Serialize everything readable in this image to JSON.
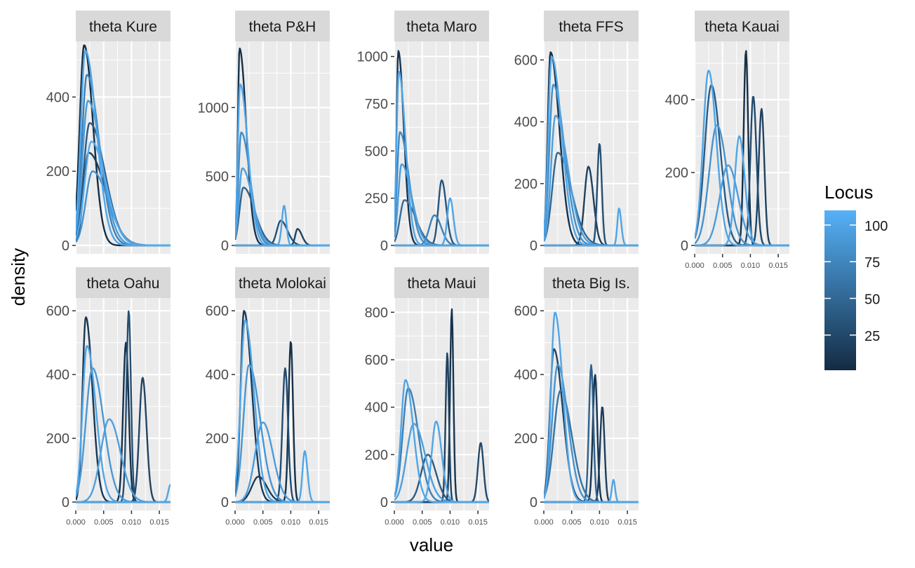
{
  "chart_data": {
    "type": "line",
    "chart_kind": "faceted density curves",
    "title": "",
    "xlabel": "value",
    "ylabel": "density",
    "grid": true,
    "x_range": [
      0,
      0.017
    ],
    "x_ticks": [
      0.0,
      0.005,
      0.01,
      0.015
    ],
    "x_tick_labels": [
      "0.000",
      "0.005",
      "0.010",
      "0.015"
    ],
    "legend": {
      "title": "Locus",
      "placement": "right",
      "type": "colorbar",
      "range": [
        1,
        110
      ],
      "ticks": [
        25,
        50,
        75,
        100
      ],
      "tick_labels": [
        "25",
        "50",
        "75",
        "100"
      ],
      "color_low": "#132b43",
      "color_high": "#56b1f7"
    },
    "colors": {
      "panel_background": "#ebebeb",
      "strip_background": "#d9d9d9",
      "gridline": "#ffffff",
      "text": "#4d4d4d"
    },
    "facets": [
      {
        "label": "theta Kure",
        "y_max": 550,
        "y_ticks": [
          0,
          200,
          400
        ],
        "y_tick_labels": [
          "0",
          "200",
          "400"
        ],
        "curves": [
          {
            "peak": 0.0015,
            "sd": 0.0008,
            "sd2": 0.0016,
            "height": 540,
            "locus": 3
          },
          {
            "peak": 0.0017,
            "sd": 0.0008,
            "sd2": 0.002,
            "height": 525,
            "locus": 100
          },
          {
            "peak": 0.002,
            "sd": 0.0009,
            "sd2": 0.0022,
            "height": 460,
            "locus": 70
          },
          {
            "peak": 0.0022,
            "sd": 0.001,
            "sd2": 0.0024,
            "height": 390,
            "locus": 92
          },
          {
            "peak": 0.0025,
            "sd": 0.0011,
            "sd2": 0.0027,
            "height": 330,
            "locus": 40
          },
          {
            "peak": 0.0028,
            "sd": 0.0012,
            "sd2": 0.0026,
            "height": 280,
            "locus": 105
          },
          {
            "peak": 0.0023,
            "sd": 0.0009,
            "sd2": 0.003,
            "height": 250,
            "locus": 15
          },
          {
            "peak": 0.003,
            "sd": 0.0012,
            "sd2": 0.0028,
            "height": 200,
            "locus": 85
          }
        ]
      },
      {
        "label": "theta P&H",
        "y_max": 1480,
        "y_ticks": [
          0,
          500,
          1000
        ],
        "y_tick_labels": [
          "0",
          "500",
          "1000"
        ],
        "curves": [
          {
            "peak": 0.0008,
            "sd": 0.0003,
            "sd2": 0.0012,
            "height": 1430,
            "locus": 5
          },
          {
            "peak": 0.0009,
            "sd": 0.0004,
            "sd2": 0.0014,
            "height": 1170,
            "locus": 102
          },
          {
            "peak": 0.0011,
            "sd": 0.0005,
            "sd2": 0.0016,
            "height": 820,
            "locus": 80
          },
          {
            "peak": 0.0013,
            "sd": 0.0006,
            "sd2": 0.0018,
            "height": 560,
            "locus": 95
          },
          {
            "peak": 0.0015,
            "sd": 0.0007,
            "sd2": 0.002,
            "height": 420,
            "locus": 45
          },
          {
            "peak": 0.0088,
            "sd": 0.0004,
            "sd2": 0.0004,
            "height": 290,
            "locus": 100
          },
          {
            "peak": 0.0082,
            "sd": 0.0007,
            "sd2": 0.0012,
            "height": 180,
            "locus": 30
          },
          {
            "peak": 0.0112,
            "sd": 0.0004,
            "sd2": 0.0008,
            "height": 120,
            "locus": 20
          }
        ]
      },
      {
        "label": "theta Maro",
        "y_max": 1080,
        "y_ticks": [
          0,
          250,
          500,
          750,
          1000
        ],
        "y_tick_labels": [
          "0",
          "250",
          "500",
          "750",
          "1000"
        ],
        "curves": [
          {
            "peak": 0.0007,
            "sd": 0.0003,
            "sd2": 0.001,
            "height": 1030,
            "locus": 8
          },
          {
            "peak": 0.0008,
            "sd": 0.0004,
            "sd2": 0.0012,
            "height": 920,
            "locus": 100
          },
          {
            "peak": 0.001,
            "sd": 0.0005,
            "sd2": 0.0016,
            "height": 600,
            "locus": 78
          },
          {
            "peak": 0.0013,
            "sd": 0.0006,
            "sd2": 0.0018,
            "height": 430,
            "locus": 92
          },
          {
            "peak": 0.0018,
            "sd": 0.0008,
            "sd2": 0.002,
            "height": 240,
            "locus": 55
          },
          {
            "peak": 0.0085,
            "sd": 0.0006,
            "sd2": 0.0008,
            "height": 345,
            "locus": 35
          },
          {
            "peak": 0.01,
            "sd": 0.0005,
            "sd2": 0.0006,
            "height": 250,
            "locus": 100
          },
          {
            "peak": 0.0072,
            "sd": 0.0009,
            "sd2": 0.0012,
            "height": 160,
            "locus": 70
          }
        ]
      },
      {
        "label": "theta FFS",
        "y_max": 660,
        "y_ticks": [
          0,
          200,
          400,
          600
        ],
        "y_tick_labels": [
          "0",
          "200",
          "400",
          "600"
        ],
        "curves": [
          {
            "peak": 0.0012,
            "sd": 0.0005,
            "sd2": 0.0016,
            "height": 625,
            "locus": 6
          },
          {
            "peak": 0.0014,
            "sd": 0.0006,
            "sd2": 0.0018,
            "height": 610,
            "locus": 100
          },
          {
            "peak": 0.0017,
            "sd": 0.0007,
            "sd2": 0.002,
            "height": 520,
            "locus": 82
          },
          {
            "peak": 0.0021,
            "sd": 0.0008,
            "sd2": 0.0022,
            "height": 420,
            "locus": 95
          },
          {
            "peak": 0.0025,
            "sd": 0.001,
            "sd2": 0.0024,
            "height": 300,
            "locus": 50
          },
          {
            "peak": 0.01,
            "sd": 0.0004,
            "sd2": 0.0004,
            "height": 330,
            "locus": 30
          },
          {
            "peak": 0.008,
            "sd": 0.0007,
            "sd2": 0.0009,
            "height": 255,
            "locus": 18
          },
          {
            "peak": 0.0135,
            "sd": 0.0003,
            "sd2": 0.0004,
            "height": 120,
            "locus": 100
          }
        ]
      },
      {
        "label": "theta Kauai",
        "y_max": 560,
        "y_ticks": [
          0,
          200,
          400
        ],
        "y_tick_labels": [
          "0",
          "200",
          "400"
        ],
        "curves": [
          {
            "peak": 0.0025,
            "sd": 0.001,
            "sd2": 0.0014,
            "height": 480,
            "locus": 100
          },
          {
            "peak": 0.003,
            "sd": 0.0012,
            "sd2": 0.0016,
            "height": 440,
            "locus": 40
          },
          {
            "peak": 0.004,
            "sd": 0.0014,
            "sd2": 0.0018,
            "height": 330,
            "locus": 85
          },
          {
            "peak": 0.0092,
            "sd": 0.0004,
            "sd2": 0.0004,
            "height": 535,
            "locus": 4
          },
          {
            "peak": 0.0105,
            "sd": 0.0005,
            "sd2": 0.0006,
            "height": 410,
            "locus": 25
          },
          {
            "peak": 0.012,
            "sd": 0.0005,
            "sd2": 0.0005,
            "height": 375,
            "locus": 20
          },
          {
            "peak": 0.008,
            "sd": 0.0008,
            "sd2": 0.001,
            "height": 300,
            "locus": 100
          },
          {
            "peak": 0.006,
            "sd": 0.0015,
            "sd2": 0.0018,
            "height": 220,
            "locus": 92
          }
        ]
      },
      {
        "label": "theta Oahu",
        "y_max": 640,
        "y_ticks": [
          0,
          200,
          400,
          600
        ],
        "y_tick_labels": [
          "0",
          "200",
          "400",
          "600"
        ],
        "curves": [
          {
            "peak": 0.0018,
            "sd": 0.0006,
            "sd2": 0.0012,
            "height": 580,
            "locus": 10
          },
          {
            "peak": 0.002,
            "sd": 0.0008,
            "sd2": 0.0016,
            "height": 490,
            "locus": 100
          },
          {
            "peak": 0.003,
            "sd": 0.0012,
            "sd2": 0.002,
            "height": 420,
            "locus": 90
          },
          {
            "peak": 0.0095,
            "sd": 0.0004,
            "sd2": 0.0004,
            "height": 600,
            "locus": 30
          },
          {
            "peak": 0.009,
            "sd": 0.0005,
            "sd2": 0.0005,
            "height": 500,
            "locus": 5
          },
          {
            "peak": 0.012,
            "sd": 0.0006,
            "sd2": 0.0007,
            "height": 390,
            "locus": 22
          },
          {
            "peak": 0.006,
            "sd": 0.0015,
            "sd2": 0.002,
            "height": 260,
            "locus": 95
          },
          {
            "peak": 0.017,
            "sd": 0.0004,
            "sd2": 0.0004,
            "height": 55,
            "locus": 100
          }
        ]
      },
      {
        "label": "theta Molokai",
        "y_max": 640,
        "y_ticks": [
          0,
          200,
          400,
          600
        ],
        "y_tick_labels": [
          "0",
          "200",
          "400",
          "600"
        ],
        "curves": [
          {
            "peak": 0.0016,
            "sd": 0.0006,
            "sd2": 0.0014,
            "height": 600,
            "locus": 12
          },
          {
            "peak": 0.0018,
            "sd": 0.0008,
            "sd2": 0.0016,
            "height": 570,
            "locus": 100
          },
          {
            "peak": 0.0025,
            "sd": 0.001,
            "sd2": 0.002,
            "height": 430,
            "locus": 88
          },
          {
            "peak": 0.01,
            "sd": 0.0004,
            "sd2": 0.0004,
            "height": 505,
            "locus": 4
          },
          {
            "peak": 0.009,
            "sd": 0.0005,
            "sd2": 0.0005,
            "height": 420,
            "locus": 28
          },
          {
            "peak": 0.0125,
            "sd": 0.0004,
            "sd2": 0.0005,
            "height": 160,
            "locus": 100
          },
          {
            "peak": 0.005,
            "sd": 0.0014,
            "sd2": 0.0018,
            "height": 250,
            "locus": 93
          },
          {
            "peak": 0.0042,
            "sd": 0.0012,
            "sd2": 0.0015,
            "height": 80,
            "locus": 15
          }
        ]
      },
      {
        "label": "theta Maui",
        "y_max": 860,
        "y_ticks": [
          0,
          200,
          400,
          600,
          800
        ],
        "y_tick_labels": [
          "0",
          "200",
          "400",
          "600",
          "800"
        ],
        "curves": [
          {
            "peak": 0.002,
            "sd": 0.0008,
            "sd2": 0.0014,
            "height": 515,
            "locus": 100
          },
          {
            "peak": 0.0025,
            "sd": 0.001,
            "sd2": 0.0018,
            "height": 480,
            "locus": 70
          },
          {
            "peak": 0.0035,
            "sd": 0.0013,
            "sd2": 0.002,
            "height": 330,
            "locus": 95
          },
          {
            "peak": 0.0103,
            "sd": 0.0003,
            "sd2": 0.0003,
            "height": 815,
            "locus": 8
          },
          {
            "peak": 0.0095,
            "sd": 0.0003,
            "sd2": 0.0003,
            "height": 630,
            "locus": 20
          },
          {
            "peak": 0.0155,
            "sd": 0.0005,
            "sd2": 0.0005,
            "height": 250,
            "locus": 25
          },
          {
            "peak": 0.0075,
            "sd": 0.0008,
            "sd2": 0.001,
            "height": 340,
            "locus": 100
          },
          {
            "peak": 0.006,
            "sd": 0.0012,
            "sd2": 0.0015,
            "height": 200,
            "locus": 40
          }
        ]
      },
      {
        "label": "theta Big Is.",
        "y_max": 640,
        "y_ticks": [
          0,
          200,
          400,
          600
        ],
        "y_tick_labels": [
          "0",
          "200",
          "400",
          "600"
        ],
        "curves": [
          {
            "peak": 0.002,
            "sd": 0.0007,
            "sd2": 0.0014,
            "height": 595,
            "locus": 100
          },
          {
            "peak": 0.0018,
            "sd": 0.0007,
            "sd2": 0.0016,
            "height": 480,
            "locus": 20
          },
          {
            "peak": 0.0025,
            "sd": 0.001,
            "sd2": 0.0018,
            "height": 430,
            "locus": 85
          },
          {
            "peak": 0.003,
            "sd": 0.0012,
            "sd2": 0.002,
            "height": 350,
            "locus": 60
          },
          {
            "peak": 0.0085,
            "sd": 0.0004,
            "sd2": 0.0004,
            "height": 430,
            "locus": 45
          },
          {
            "peak": 0.0092,
            "sd": 0.0004,
            "sd2": 0.0004,
            "height": 400,
            "locus": 8
          },
          {
            "peak": 0.0105,
            "sd": 0.0004,
            "sd2": 0.0004,
            "height": 300,
            "locus": 15
          },
          {
            "peak": 0.0125,
            "sd": 0.0003,
            "sd2": 0.0003,
            "height": 70,
            "locus": 100
          }
        ]
      }
    ]
  }
}
